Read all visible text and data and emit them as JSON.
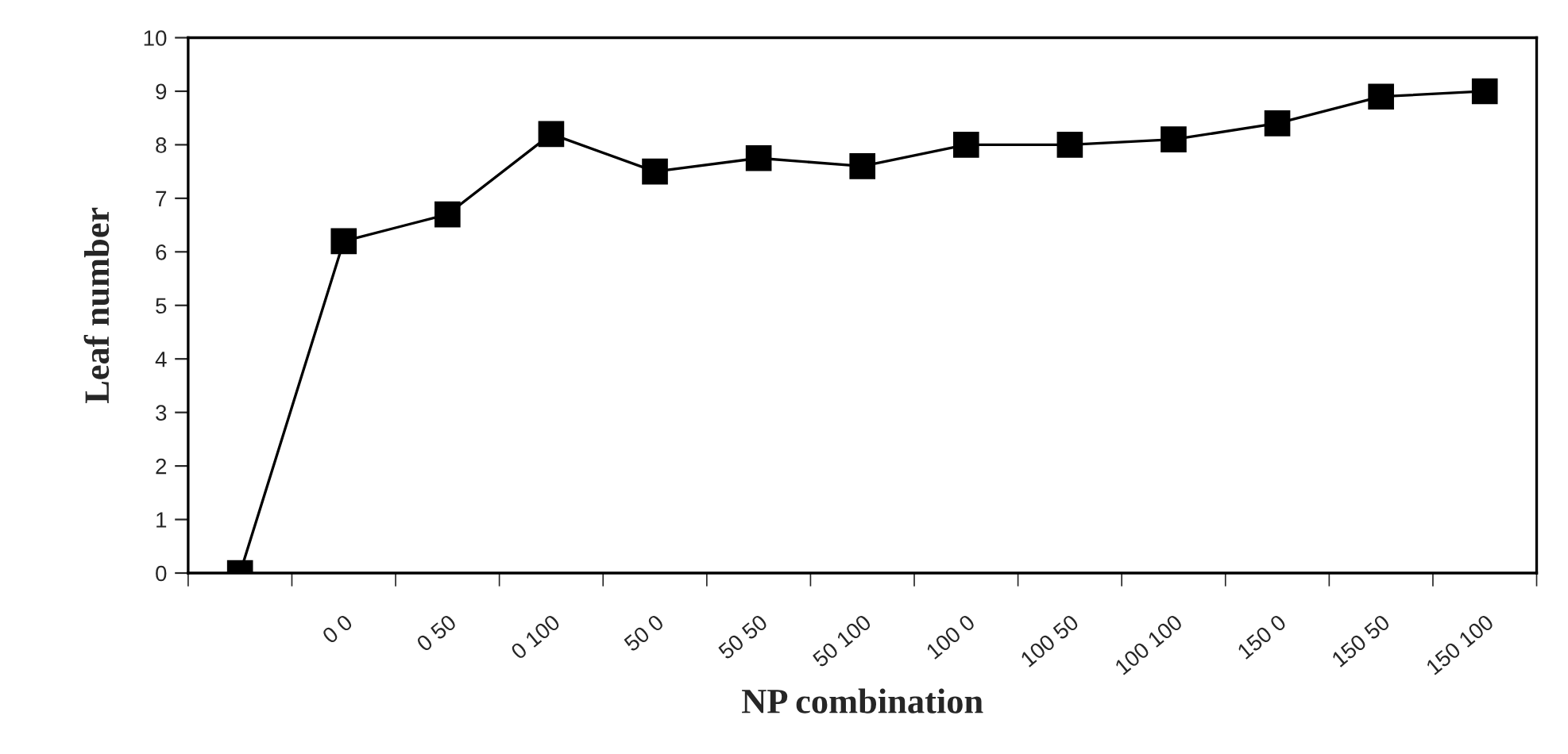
{
  "chart_data": {
    "type": "line",
    "xlabel": "NP combination",
    "ylabel": "Leaf number",
    "categories": [
      null,
      "0 0",
      "0 50",
      "0 100",
      "50 0",
      "50 50",
      "50 100",
      "100 0",
      "100 50",
      "100 100",
      "150 0",
      "150 50",
      "150 100"
    ],
    "series": [
      {
        "color": "#000000",
        "values": [
          0,
          6.2,
          6.7,
          8.2,
          7.5,
          7.75,
          7.6,
          8.0,
          8.0,
          8.1,
          8.4,
          8.9,
          9.0
        ]
      }
    ],
    "ylim": [
      0,
      10
    ],
    "yticks": [
      0,
      1,
      2,
      3,
      4,
      5,
      6,
      7,
      8,
      9,
      10
    ],
    "grid": false,
    "marker": "square",
    "line_style": "solid"
  }
}
